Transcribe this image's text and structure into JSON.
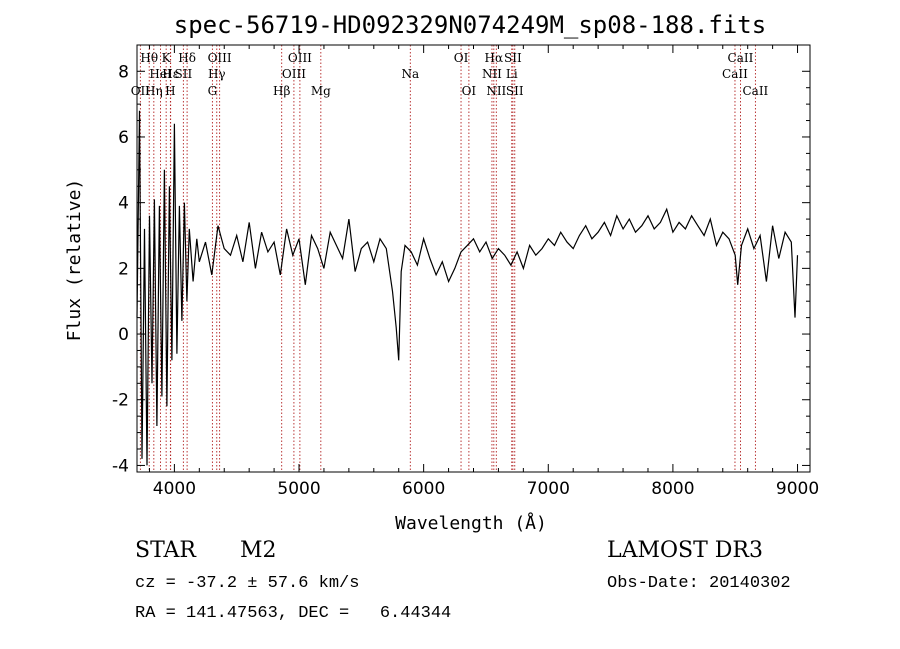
{
  "chart_data": {
    "type": "line",
    "title": "spec-56719-HD092329N074249M_sp08-188.fits",
    "xlabel": "Wavelength (Å)",
    "ylabel": "Flux (relative)",
    "xlim": [
      3700,
      9100
    ],
    "ylim": [
      -4.2,
      8.8
    ],
    "xticks": [
      4000,
      5000,
      6000,
      7000,
      8000,
      9000
    ],
    "yticks": [
      -4,
      -2,
      0,
      2,
      4,
      6,
      8
    ],
    "series": [
      {
        "values_x": [
          3700,
          3720,
          3740,
          3760,
          3780,
          3800,
          3820,
          3840,
          3860,
          3880,
          3900,
          3920,
          3940,
          3960,
          3980,
          4000,
          4020,
          4040,
          4060,
          4080,
          4100,
          4120,
          4150,
          4180,
          4200,
          4250,
          4300,
          4350,
          4400,
          4450,
          4500,
          4550,
          4600,
          4650,
          4700,
          4750,
          4800,
          4850,
          4900,
          4950,
          5000,
          5050,
          5100,
          5150,
          5200,
          5250,
          5300,
          5350,
          5400,
          5450,
          5500,
          5550,
          5600,
          5650,
          5700,
          5750,
          5780,
          5800,
          5820,
          5850,
          5900,
          5950,
          6000,
          6050,
          6100,
          6150,
          6200,
          6250,
          6300,
          6350,
          6400,
          6450,
          6500,
          6550,
          6600,
          6650,
          6700,
          6750,
          6800,
          6850,
          6900,
          6950,
          7000,
          7050,
          7100,
          7150,
          7200,
          7250,
          7300,
          7350,
          7400,
          7450,
          7500,
          7550,
          7600,
          7650,
          7700,
          7750,
          7800,
          7850,
          7900,
          7950,
          8000,
          8050,
          8100,
          8150,
          8200,
          8250,
          8300,
          8350,
          8400,
          8450,
          8500,
          8520,
          8550,
          8600,
          8650,
          8700,
          8750,
          8800,
          8850,
          8900,
          8950,
          8980,
          9000
        ],
        "values_y": [
          0.5,
          6.8,
          -3.8,
          3.2,
          -4.0,
          3.6,
          -1.5,
          4.1,
          -2.8,
          3.9,
          -1.9,
          5.0,
          -2.2,
          4.5,
          -0.8,
          6.4,
          -0.6,
          3.9,
          0.4,
          4.0,
          1.0,
          3.2,
          1.6,
          2.9,
          2.2,
          2.8,
          1.8,
          3.3,
          2.6,
          2.4,
          3.0,
          2.2,
          3.4,
          2.0,
          3.1,
          2.5,
          2.8,
          1.8,
          3.2,
          2.4,
          2.9,
          1.5,
          3.0,
          2.6,
          2.0,
          3.1,
          2.7,
          2.3,
          3.5,
          1.9,
          2.6,
          2.8,
          2.2,
          2.9,
          2.6,
          1.3,
          0.2,
          -0.8,
          1.9,
          2.7,
          2.5,
          2.1,
          2.9,
          2.3,
          1.8,
          2.2,
          1.6,
          2.0,
          2.5,
          2.7,
          2.9,
          2.5,
          2.8,
          2.3,
          2.6,
          2.4,
          2.1,
          2.5,
          2.0,
          2.7,
          2.4,
          2.6,
          2.9,
          2.7,
          3.1,
          2.8,
          2.6,
          3.0,
          3.3,
          2.9,
          3.1,
          3.4,
          3.0,
          3.6,
          3.2,
          3.5,
          3.1,
          3.3,
          3.6,
          3.2,
          3.4,
          3.8,
          3.1,
          3.4,
          3.2,
          3.6,
          3.3,
          3.0,
          3.5,
          2.7,
          3.1,
          2.9,
          2.4,
          1.5,
          2.7,
          3.2,
          2.6,
          3.0,
          1.6,
          3.3,
          2.3,
          3.1,
          2.8,
          0.5,
          2.4
        ]
      }
    ],
    "spectral_lines": [
      {
        "label": "Hθ",
        "x": 3798,
        "row": 1
      },
      {
        "label": "OII",
        "x": 3727,
        "row": 3
      },
      {
        "label": "Hη",
        "x": 3835,
        "row": 3
      },
      {
        "label": "HeI",
        "x": 3889,
        "row": 2
      },
      {
        "label": "K",
        "x": 3934,
        "row": 1
      },
      {
        "label": "H",
        "x": 3968,
        "row": 3
      },
      {
        "label": "Hε",
        "x": 3970,
        "row": 2
      },
      {
        "label": "SII",
        "x": 4072,
        "row": 2
      },
      {
        "label": "Hδ",
        "x": 4102,
        "row": 1
      },
      {
        "label": "G",
        "x": 4305,
        "row": 3
      },
      {
        "label": "Hγ",
        "x": 4340,
        "row": 2
      },
      {
        "label": "OIII",
        "x": 4363,
        "row": 1
      },
      {
        "label": "Hβ",
        "x": 4861,
        "row": 3
      },
      {
        "label": "OIII",
        "x": 4959,
        "row": 2
      },
      {
        "label": "OIII",
        "x": 5007,
        "row": 1
      },
      {
        "label": "Mg",
        "x": 5175,
        "row": 3
      },
      {
        "label": "Na",
        "x": 5893,
        "row": 2
      },
      {
        "label": "OI",
        "x": 6300,
        "row": 1
      },
      {
        "label": "OI",
        "x": 6363,
        "row": 3
      },
      {
        "label": "NII",
        "x": 6548,
        "row": 2
      },
      {
        "label": "Hα",
        "x": 6563,
        "row": 1
      },
      {
        "label": "NII",
        "x": 6583,
        "row": 3
      },
      {
        "label": "Li",
        "x": 6707,
        "row": 2
      },
      {
        "label": "SII",
        "x": 6716,
        "row": 1
      },
      {
        "label": "SII",
        "x": 6731,
        "row": 3
      },
      {
        "label": "CaII",
        "x": 8498,
        "row": 2
      },
      {
        "label": "CaII",
        "x": 8542,
        "row": 1
      },
      {
        "label": "CaII",
        "x": 8662,
        "row": 3
      }
    ],
    "colors": {
      "line": "#000000",
      "marker": "#b22222",
      "axis": "#000000"
    }
  },
  "info": {
    "class": "STAR",
    "subclass": "M2",
    "survey": "LAMOST DR3",
    "redshift": "cz = -37.2 ± 57.6 km/s",
    "obs_date": "Obs-Date: 20140302",
    "coords": "RA = 141.47563, DEC =   6.44344"
  }
}
